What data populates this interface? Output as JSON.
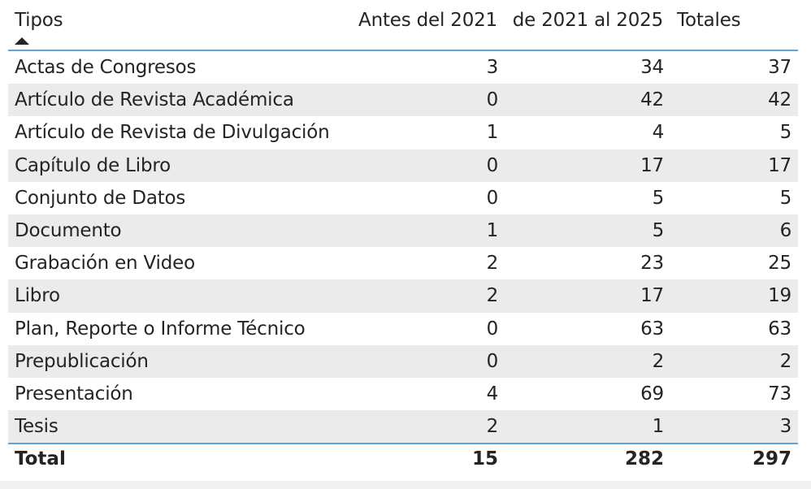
{
  "header": {
    "tipos": "Tipos",
    "antes": "Antes del 2021",
    "rango": "de 2021 al 2025",
    "totales": "Totales"
  },
  "rows": [
    {
      "tipo": "Actas de Congresos",
      "antes": "3",
      "rango": "34",
      "total": "37"
    },
    {
      "tipo": "Artículo de Revista Académica",
      "antes": "0",
      "rango": "42",
      "total": "42"
    },
    {
      "tipo": "Artículo de Revista de Divulgación",
      "antes": "1",
      "rango": "4",
      "total": "5"
    },
    {
      "tipo": "Capítulo de Libro",
      "antes": "0",
      "rango": "17",
      "total": "17"
    },
    {
      "tipo": "Conjunto de Datos",
      "antes": "0",
      "rango": "5",
      "total": "5"
    },
    {
      "tipo": "Documento",
      "antes": "1",
      "rango": "5",
      "total": "6"
    },
    {
      "tipo": "Grabación en Video",
      "antes": "2",
      "rango": "23",
      "total": "25"
    },
    {
      "tipo": "Libro",
      "antes": "2",
      "rango": "17",
      "total": "19"
    },
    {
      "tipo": "Plan, Reporte o Informe Técnico",
      "antes": "0",
      "rango": "63",
      "total": "63"
    },
    {
      "tipo": "Prepublicación",
      "antes": "0",
      "rango": "2",
      "total": "2"
    },
    {
      "tipo": "Presentación",
      "antes": "4",
      "rango": "69",
      "total": "73"
    },
    {
      "tipo": "Tesis",
      "antes": "2",
      "rango": "1",
      "total": "3"
    }
  ],
  "total": {
    "label": "Total",
    "antes": "15",
    "rango": "282",
    "total": "297"
  },
  "colors": {
    "accent_rule": "#5ea6d8",
    "alt_row": "#ebebeb",
    "text": "#252423"
  }
}
